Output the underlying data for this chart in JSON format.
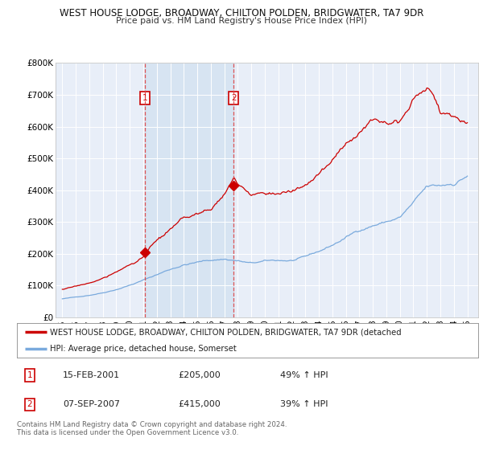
{
  "title": "WEST HOUSE LODGE, BROADWAY, CHILTON POLDEN, BRIDGWATER, TA7 9DR",
  "subtitle": "Price paid vs. HM Land Registry's House Price Index (HPI)",
  "background_color": "#ffffff",
  "plot_bg_color": "#e8eef8",
  "grid_color": "#ffffff",
  "red_line_color": "#cc0000",
  "blue_line_color": "#7aaadd",
  "shade_color": "#d0e0f0",
  "vline_color": "#dd4444",
  "ylim": [
    0,
    800000
  ],
  "yticks": [
    0,
    100000,
    200000,
    300000,
    400000,
    500000,
    600000,
    700000,
    800000
  ],
  "ytick_labels": [
    "£0",
    "£100K",
    "£200K",
    "£300K",
    "£400K",
    "£500K",
    "£600K",
    "£700K",
    "£800K"
  ],
  "xlim": [
    1994.5,
    2025.8
  ],
  "xtick_years": [
    1995,
    1996,
    1997,
    1998,
    1999,
    2000,
    2001,
    2002,
    2003,
    2004,
    2005,
    2006,
    2007,
    2008,
    2009,
    2010,
    2011,
    2012,
    2013,
    2014,
    2015,
    2016,
    2017,
    2018,
    2019,
    2020,
    2021,
    2022,
    2023,
    2024,
    2025
  ],
  "purchase_year1": 2001.12,
  "purchase_val1": 205000,
  "purchase_year2": 2007.68,
  "purchase_val2": 415000,
  "legend_red_label": "WEST HOUSE LODGE, BROADWAY, CHILTON POLDEN, BRIDGWATER, TA7 9DR (detached",
  "legend_blue_label": "HPI: Average price, detached house, Somerset",
  "table_data": [
    {
      "num": "1",
      "date": "15-FEB-2001",
      "price": "£205,000",
      "hpi": "49% ↑ HPI"
    },
    {
      "num": "2",
      "date": "07-SEP-2007",
      "price": "£415,000",
      "hpi": "39% ↑ HPI"
    }
  ],
  "footer": "Contains HM Land Registry data © Crown copyright and database right 2024.\nThis data is licensed under the Open Government Licence v3.0."
}
